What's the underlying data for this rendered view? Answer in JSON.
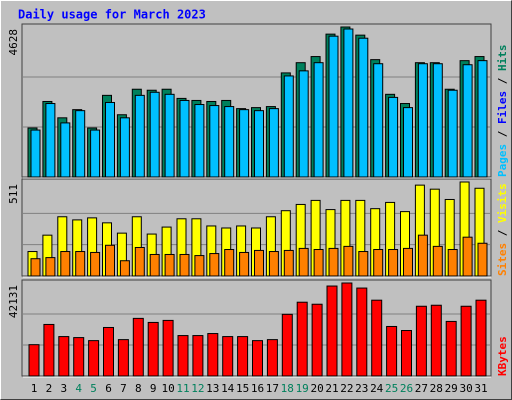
{
  "chart_data": [
    {
      "type": "bar",
      "title": "Daily usage for March 2023",
      "title_color": "#0000ff",
      "ylim": [
        0,
        4628
      ],
      "yticks": [
        4628
      ],
      "ylabel_parts": [
        {
          "text": "Pages",
          "color": "#00c0ff"
        },
        {
          "text": " / ",
          "color": "#000000"
        },
        {
          "text": "Files",
          "color": "#0000ff"
        },
        {
          "text": " / ",
          "color": "#000000"
        },
        {
          "text": "Hits",
          "color": "#00805c"
        }
      ],
      "series": [
        {
          "name": "Hits",
          "color": "#00805c",
          "values": [
            1511,
            2330,
            1826,
            2078,
            1511,
            2519,
            1921,
            2708,
            2677,
            2708,
            2425,
            2362,
            2330,
            2362,
            2110,
            2141,
            2173,
            3212,
            3527,
            3716,
            4408,
            4628,
            4377,
            3621,
            2551,
            2267,
            3527,
            3527,
            2708,
            3590,
            3716
          ]
        },
        {
          "name": "Pages",
          "color": "#00c0ff",
          "values": [
            1448,
            2267,
            1669,
            2047,
            1448,
            2299,
            1826,
            2519,
            2614,
            2551,
            2362,
            2236,
            2204,
            2173,
            2078,
            2047,
            2110,
            3118,
            3275,
            3527,
            4345,
            4566,
            4282,
            3495,
            2456,
            2141,
            3495,
            3495,
            2677,
            3464,
            3590
          ]
        }
      ]
    },
    {
      "type": "bar",
      "ylim": [
        0,
        511
      ],
      "yticks": [
        511
      ],
      "ylabel_parts": [
        {
          "text": "Sites",
          "color": "#ff8000"
        },
        {
          "text": " / ",
          "color": "#000000"
        },
        {
          "text": "Visits",
          "color": "#ffff00"
        }
      ],
      "series": [
        {
          "name": "Visits",
          "color": "#ffff00",
          "values": [
            133,
            222,
            322,
            305,
            316,
            289,
            233,
            322,
            228,
            266,
            311,
            311,
            272,
            261,
            272,
            261,
            322,
            355,
            389,
            411,
            361,
            411,
            411,
            366,
            400,
            350,
            494,
            472,
            416,
            511,
            477
          ]
        },
        {
          "name": "Sites",
          "color": "#ff8000",
          "values": [
            94,
            100,
            133,
            133,
            128,
            167,
            83,
            155,
            117,
            117,
            117,
            111,
            122,
            144,
            128,
            139,
            133,
            139,
            150,
            144,
            150,
            161,
            133,
            144,
            144,
            150,
            222,
            161,
            144,
            211,
            178
          ]
        }
      ]
    },
    {
      "type": "bar",
      "ylim": [
        0,
        42131
      ],
      "yticks": [
        42131
      ],
      "ylabel_parts": [
        {
          "text": "KBytes",
          "color": "#ff0000"
        }
      ],
      "categories": [
        1,
        2,
        3,
        4,
        5,
        6,
        7,
        8,
        9,
        10,
        11,
        12,
        13,
        14,
        15,
        16,
        17,
        18,
        19,
        20,
        21,
        22,
        23,
        24,
        25,
        26,
        27,
        28,
        29,
        30,
        31
      ],
      "label_colors": [
        "#000000",
        "#000000",
        "#000000",
        "#00805c",
        "#00805c",
        "#000000",
        "#000000",
        "#000000",
        "#000000",
        "#000000",
        "#00805c",
        "#00805c",
        "#000000",
        "#000000",
        "#000000",
        "#000000",
        "#000000",
        "#00805c",
        "#00805c",
        "#000000",
        "#000000",
        "#000000",
        "#000000",
        "#000000",
        "#00805c",
        "#00805c",
        "#000000",
        "#000000",
        "#000000",
        "#000000",
        "#000000"
      ],
      "series": [
        {
          "name": "KBytes",
          "color": "#ff0000",
          "values": [
            14196,
            23354,
            17859,
            17401,
            16027,
            21980,
            16485,
            26102,
            24270,
            25186,
            18317,
            18317,
            19233,
            17859,
            17859,
            16027,
            16485,
            27934,
            33429,
            32513,
            40756,
            42131,
            39839,
            34345,
            22438,
            20607,
            31597,
            32055,
            24728,
            31597,
            34345
          ]
        }
      ]
    }
  ]
}
